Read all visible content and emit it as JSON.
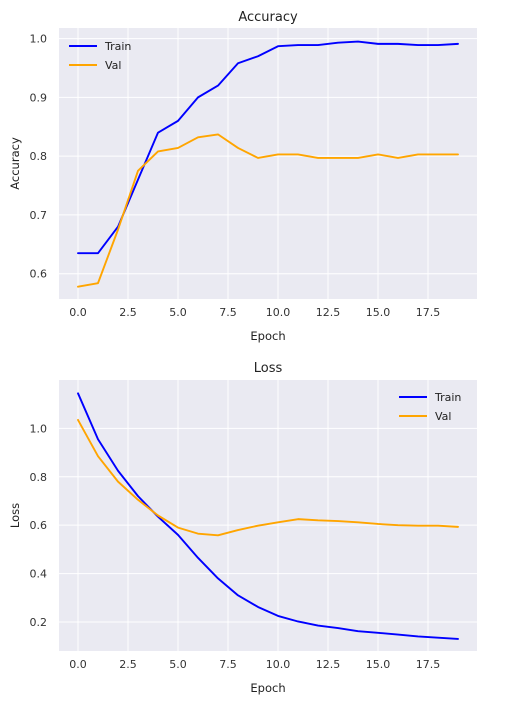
{
  "chart_data": [
    {
      "type": "line",
      "title": "Accuracy",
      "xlabel": "Epoch",
      "ylabel": "Accuracy",
      "xlim": [
        -0.95,
        19.95
      ],
      "ylim": [
        0.557,
        1.018
      ],
      "xticks": [
        0.0,
        2.5,
        5.0,
        7.5,
        10.0,
        12.5,
        15.0,
        17.5
      ],
      "xtick_labels": [
        "0.0",
        "2.5",
        "5.0",
        "7.5",
        "10.0",
        "12.5",
        "15.0",
        "17.5"
      ],
      "yticks": [
        0.6,
        0.7,
        0.8,
        0.9,
        1.0
      ],
      "ytick_labels": [
        "0.6",
        "0.7",
        "0.8",
        "0.9",
        "1.0"
      ],
      "grid": true,
      "legend": "top-left",
      "x": [
        0,
        1,
        2,
        3,
        4,
        5,
        6,
        7,
        8,
        9,
        10,
        11,
        12,
        13,
        14,
        15,
        16,
        17,
        18,
        19
      ],
      "series": [
        {
          "name": "Train",
          "color": "#0000ff",
          "values": [
            0.635,
            0.635,
            0.68,
            0.76,
            0.84,
            0.86,
            0.9,
            0.92,
            0.958,
            0.97,
            0.987,
            0.989,
            0.989,
            0.993,
            0.995,
            0.991,
            0.991,
            0.989,
            0.989,
            0.991
          ]
        },
        {
          "name": "Val",
          "color": "#ffa500",
          "values": [
            0.578,
            0.584,
            0.675,
            0.775,
            0.808,
            0.814,
            0.832,
            0.837,
            0.814,
            0.797,
            0.803,
            0.803,
            0.797,
            0.797,
            0.797,
            0.803,
            0.797,
            0.803,
            0.803,
            0.803
          ]
        }
      ]
    },
    {
      "type": "line",
      "title": "Loss",
      "xlabel": "Epoch",
      "ylabel": "Loss",
      "xlim": [
        -0.95,
        19.95
      ],
      "ylim": [
        0.08,
        1.2
      ],
      "xticks": [
        0.0,
        2.5,
        5.0,
        7.5,
        10.0,
        12.5,
        15.0,
        17.5
      ],
      "xtick_labels": [
        "0.0",
        "2.5",
        "5.0",
        "7.5",
        "10.0",
        "12.5",
        "15.0",
        "17.5"
      ],
      "yticks": [
        0.2,
        0.4,
        0.6,
        0.8,
        1.0
      ],
      "ytick_labels": [
        "0.2",
        "0.4",
        "0.6",
        "0.8",
        "1.0"
      ],
      "grid": true,
      "legend": "top-right",
      "x": [
        0,
        1,
        2,
        3,
        4,
        5,
        6,
        7,
        8,
        9,
        10,
        11,
        12,
        13,
        14,
        15,
        16,
        17,
        18,
        19
      ],
      "series": [
        {
          "name": "Train",
          "color": "#0000ff",
          "values": [
            1.145,
            0.955,
            0.825,
            0.72,
            0.635,
            0.56,
            0.465,
            0.38,
            0.31,
            0.262,
            0.225,
            0.202,
            0.185,
            0.175,
            0.162,
            0.155,
            0.148,
            0.14,
            0.135,
            0.13
          ]
        },
        {
          "name": "Val",
          "color": "#ffa500",
          "values": [
            1.035,
            0.885,
            0.78,
            0.705,
            0.64,
            0.59,
            0.565,
            0.558,
            0.58,
            0.598,
            0.612,
            0.625,
            0.62,
            0.617,
            0.612,
            0.605,
            0.6,
            0.598,
            0.598,
            0.593
          ]
        }
      ]
    }
  ]
}
